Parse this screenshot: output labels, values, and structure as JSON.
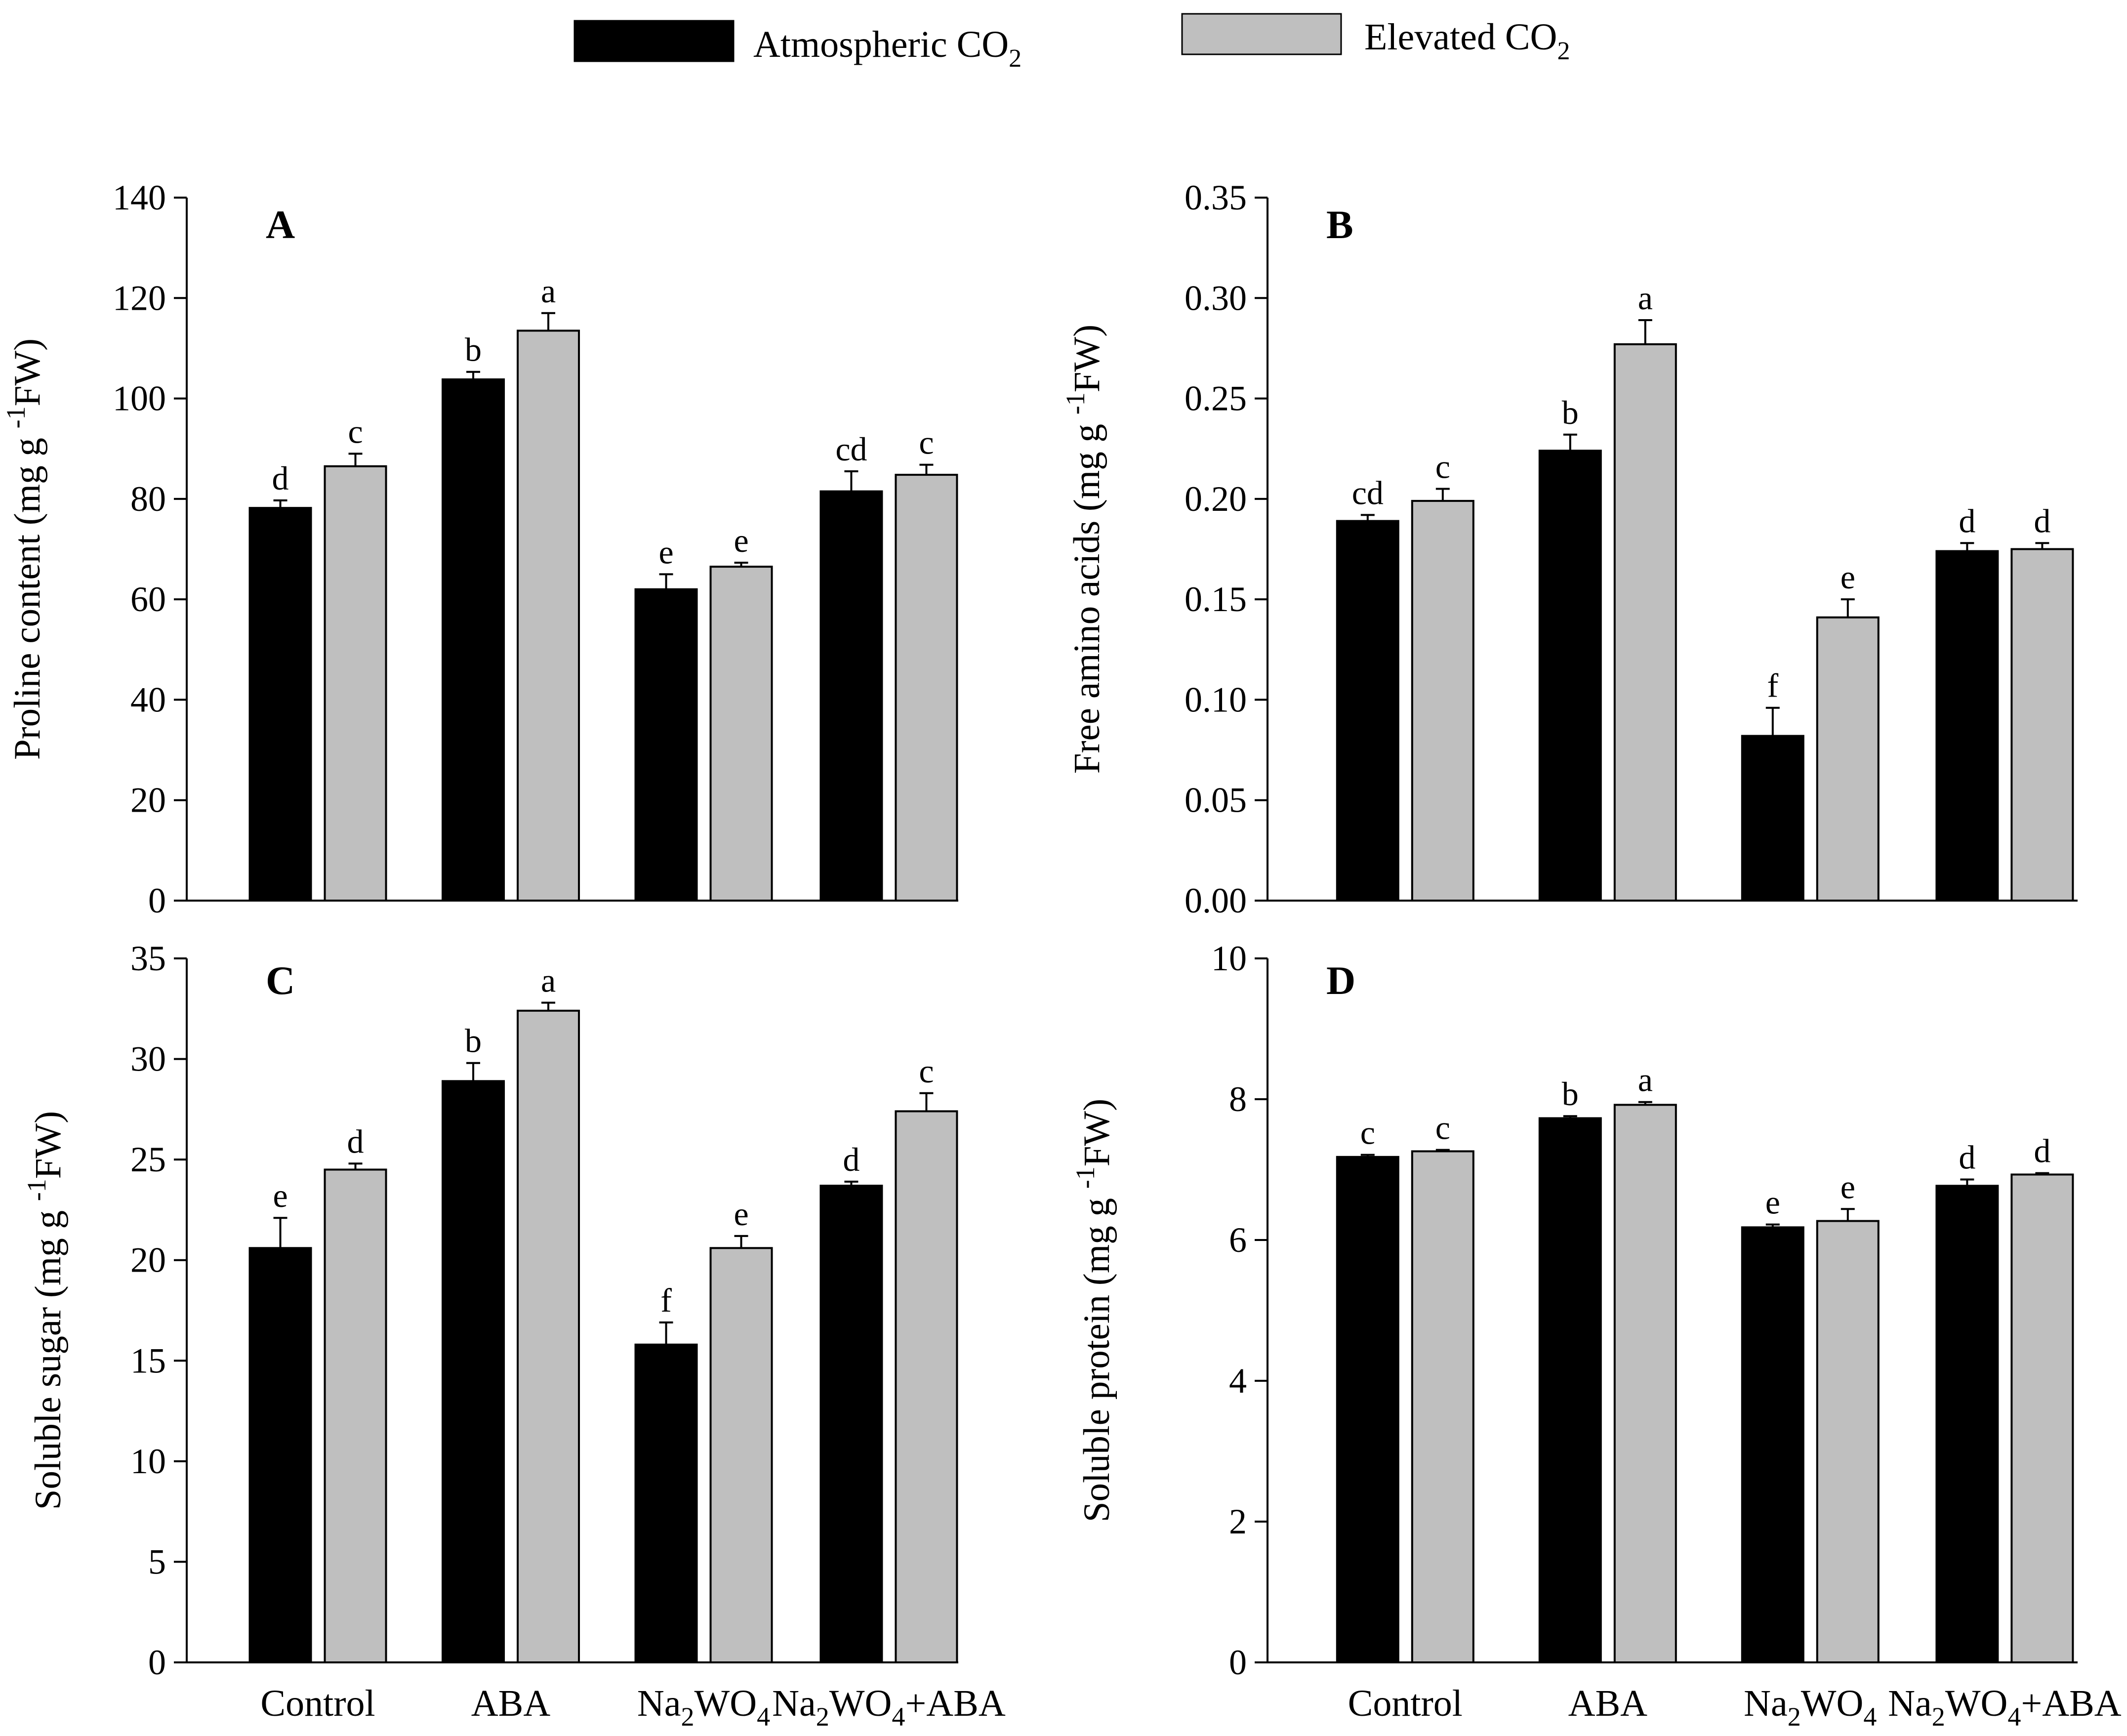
{
  "legend": {
    "series": [
      {
        "name": "Atmospheric CO",
        "sub": "2",
        "color": "#000000"
      },
      {
        "name": "Elevated CO",
        "sub": "2",
        "color": "#bfbfbf"
      }
    ]
  },
  "categories": [
    {
      "label": "Control",
      "parts": [
        {
          "t": "Control"
        }
      ]
    },
    {
      "label": "ABA",
      "parts": [
        {
          "t": "ABA"
        }
      ]
    },
    {
      "label": "Na2WO4",
      "parts": [
        {
          "t": "Na"
        },
        {
          "t": "2",
          "sub": true
        },
        {
          "t": "WO"
        },
        {
          "t": "4",
          "sub": true
        }
      ]
    },
    {
      "label": "Na2WO4+ABA",
      "parts": [
        {
          "t": "Na"
        },
        {
          "t": "2",
          "sub": true
        },
        {
          "t": "WO"
        },
        {
          "t": "4",
          "sub": true
        },
        {
          "t": "+ABA"
        }
      ]
    }
  ],
  "chart_data": [
    {
      "panel": "A",
      "type": "bar",
      "ylabel": "Proline content (mg g",
      "ylabel_sup": "-1",
      "ylabel_tail": "FW)",
      "ylim": [
        0,
        140
      ],
      "yticks": [
        "0",
        "20",
        "40",
        "60",
        "80",
        "100",
        "120",
        "140"
      ],
      "categories": [
        "Control",
        "ABA",
        "Na2WO4",
        "Na2WO4+ABA"
      ],
      "series": [
        {
          "name": "Atmospheric CO2",
          "values": [
            78.2,
            103.8,
            62.0,
            81.5
          ],
          "errors": [
            1.5,
            1.5,
            3.0,
            4.0
          ],
          "letters": [
            "d",
            "b",
            "e",
            "cd"
          ]
        },
        {
          "name": "Elevated CO2",
          "values": [
            86.5,
            113.5,
            66.5,
            84.8
          ],
          "errors": [
            2.5,
            3.5,
            0.8,
            2.0
          ],
          "letters": [
            "c",
            "a",
            "e",
            "c"
          ]
        }
      ]
    },
    {
      "panel": "B",
      "type": "bar",
      "ylabel": "Free amino acids (mg g",
      "ylabel_sup": "-1",
      "ylabel_tail": "FW)",
      "ylim": [
        0,
        0.35
      ],
      "yticks": [
        "0.00",
        "0.05",
        "0.10",
        "0.15",
        "0.20",
        "0.25",
        "0.30",
        "0.35"
      ],
      "categories": [
        "Control",
        "ABA",
        "Na2WO4",
        "Na2WO4+ABA"
      ],
      "series": [
        {
          "name": "Atmospheric CO2",
          "values": [
            0.189,
            0.224,
            0.082,
            0.174
          ],
          "errors": [
            0.003,
            0.008,
            0.014,
            0.004
          ],
          "letters": [
            "cd",
            "b",
            "f",
            "d"
          ]
        },
        {
          "name": "Elevated CO2",
          "values": [
            0.199,
            0.277,
            0.141,
            0.175
          ],
          "errors": [
            0.006,
            0.012,
            0.009,
            0.003
          ],
          "letters": [
            "c",
            "a",
            "e",
            "d"
          ]
        }
      ]
    },
    {
      "panel": "C",
      "type": "bar",
      "ylabel": "Soluble sugar (mg g",
      "ylabel_sup": "-1",
      "ylabel_tail": "FW)",
      "ylim": [
        0,
        35
      ],
      "yticks": [
        "0",
        "5",
        "10",
        "15",
        "20",
        "25",
        "30",
        "35"
      ],
      "categories": [
        "Control",
        "ABA",
        "Na2WO4",
        "Na2WO4+ABA"
      ],
      "series": [
        {
          "name": "Atmospheric CO2",
          "values": [
            20.6,
            28.9,
            15.8,
            23.7
          ],
          "errors": [
            1.5,
            0.9,
            1.1,
            0.2
          ],
          "letters": [
            "e",
            "b",
            "f",
            "d"
          ]
        },
        {
          "name": "Elevated CO2",
          "values": [
            24.5,
            32.4,
            20.6,
            27.4
          ],
          "errors": [
            0.3,
            0.4,
            0.6,
            0.9
          ],
          "letters": [
            "d",
            "a",
            "e",
            "c"
          ]
        }
      ]
    },
    {
      "panel": "D",
      "type": "bar",
      "ylabel": "Soluble protein (mg g",
      "ylabel_sup": "-1",
      "ylabel_tail": "FW)",
      "ylim": [
        0,
        10
      ],
      "yticks": [
        "0",
        "2",
        "4",
        "6",
        "8",
        "10"
      ],
      "categories": [
        "Control",
        "ABA",
        "Na2WO4",
        "Na2WO4+ABA"
      ],
      "series": [
        {
          "name": "Atmospheric CO2",
          "values": [
            7.18,
            7.73,
            6.18,
            6.77
          ],
          "errors": [
            0.03,
            0.03,
            0.04,
            0.09
          ],
          "letters": [
            "c",
            "b",
            "e",
            "d"
          ]
        },
        {
          "name": "Elevated CO2",
          "values": [
            7.26,
            7.92,
            6.27,
            6.93
          ],
          "errors": [
            0.02,
            0.04,
            0.17,
            0.02
          ],
          "letters": [
            "c",
            "a",
            "e",
            "d"
          ]
        }
      ]
    }
  ]
}
